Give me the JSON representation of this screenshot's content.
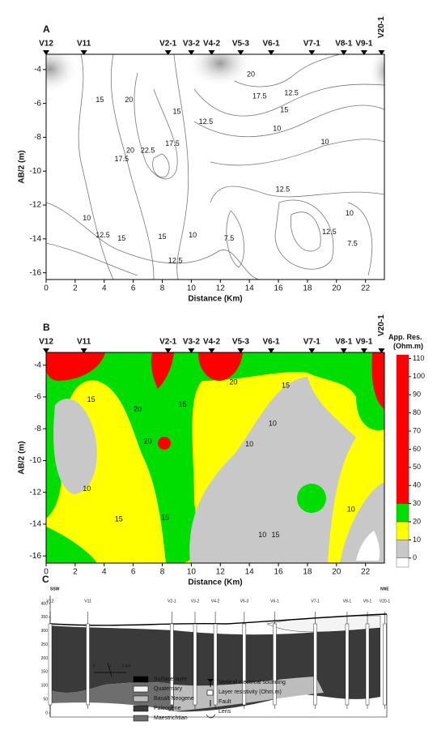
{
  "stations": [
    {
      "name": "V12",
      "x": 0
    },
    {
      "name": "V11",
      "x": 2.6
    },
    {
      "name": "V2-1",
      "x": 8.4
    },
    {
      "name": "V3-2",
      "x": 10.0
    },
    {
      "name": "V4-2",
      "x": 11.4
    },
    {
      "name": "V5-3",
      "x": 13.4
    },
    {
      "name": "V6-1",
      "x": 15.5
    },
    {
      "name": "V7-1",
      "x": 18.3
    },
    {
      "name": "V8-1",
      "x": 20.5
    },
    {
      "name": "V9-1",
      "x": 21.9
    },
    {
      "name": "V20-1",
      "x": 23.1
    }
  ],
  "panel_a": {
    "label": "A",
    "xlabel": "Distance (Km)",
    "ylabel": "AB/2 (m)",
    "xlim": [
      0,
      23.3
    ],
    "ylim": [
      -16.4,
      -3.1
    ],
    "xticks": [
      0,
      2,
      4,
      6,
      8,
      10,
      12,
      14,
      16,
      18,
      20,
      22
    ],
    "yticks": [
      -4,
      -6,
      -8,
      -10,
      -12,
      -14,
      -16
    ],
    "contour_labels": [
      {
        "value": 15,
        "x": 3.7,
        "y": -5.8
      },
      {
        "value": 20,
        "x": 5.7,
        "y": -5.8
      },
      {
        "value": 15,
        "x": 9.0,
        "y": -6.5
      },
      {
        "value": 12.5,
        "x": 11.0,
        "y": -7.1
      },
      {
        "value": 10,
        "x": 15.9,
        "y": -7.5
      },
      {
        "value": 20,
        "x": 14.1,
        "y": -4.3
      },
      {
        "value": 17.5,
        "x": 14.7,
        "y": -5.6
      },
      {
        "value": 15,
        "x": 16.4,
        "y": -6.4
      },
      {
        "value": 12.5,
        "x": 16.9,
        "y": -5.4
      },
      {
        "value": 17.5,
        "x": 5.2,
        "y": -9.3
      },
      {
        "value": 20,
        "x": 5.8,
        "y": -8.8
      },
      {
        "value": 22.5,
        "x": 7.0,
        "y": -8.8
      },
      {
        "value": 17.5,
        "x": 8.7,
        "y": -8.4
      },
      {
        "value": 10,
        "x": 19.2,
        "y": -8.3
      },
      {
        "value": 12.5,
        "x": 16.3,
        "y": -11.1
      },
      {
        "value": 10,
        "x": 2.8,
        "y": -12.8
      },
      {
        "value": 12.5,
        "x": 3.9,
        "y": -13.8
      },
      {
        "value": 15,
        "x": 5.2,
        "y": -14.0
      },
      {
        "value": 15,
        "x": 8.0,
        "y": -13.9
      },
      {
        "value": 12.5,
        "x": 8.9,
        "y": -15.3
      },
      {
        "value": 10,
        "x": 10.1,
        "y": -13.8
      },
      {
        "value": 7.5,
        "x": 12.6,
        "y": -14.0
      },
      {
        "value": 12.5,
        "x": 19.5,
        "y": -13.6
      },
      {
        "value": 10,
        "x": 20.9,
        "y": -12.5
      },
      {
        "value": 7.5,
        "x": 21.1,
        "y": -14.3
      }
    ]
  },
  "panel_b": {
    "label": "B",
    "xlabel": "Distance (Km)",
    "ylabel": "AB/2 (m)",
    "xlim": [
      0,
      23.3
    ],
    "ylim": [
      -16.45,
      -3.2
    ],
    "xticks": [
      0,
      2,
      4,
      6,
      8,
      10,
      12,
      14,
      16,
      18,
      20,
      22
    ],
    "yticks": [
      -4,
      -6,
      -8,
      -10,
      -12,
      -14,
      -16
    ],
    "contour_labels": [
      {
        "value": 15,
        "x": 3.1,
        "y": -6.2
      },
      {
        "value": 20,
        "x": 6.3,
        "y": -6.8
      },
      {
        "value": 20,
        "x": 7.0,
        "y": -8.8
      },
      {
        "value": 15,
        "x": 9.4,
        "y": -6.5
      },
      {
        "value": 20,
        "x": 12.9,
        "y": -5.1
      },
      {
        "value": 15,
        "x": 16.5,
        "y": -5.3
      },
      {
        "value": 10,
        "x": 15.6,
        "y": -7.7
      },
      {
        "value": 10,
        "x": 14.0,
        "y": -9.0
      },
      {
        "value": 10,
        "x": 2.8,
        "y": -11.8
      },
      {
        "value": 15,
        "x": 5.0,
        "y": -13.7
      },
      {
        "value": 15,
        "x": 8.2,
        "y": -13.6
      },
      {
        "value": 10,
        "x": 14.9,
        "y": -14.7
      },
      {
        "value": 15,
        "x": 15.8,
        "y": -14.7
      },
      {
        "value": 10,
        "x": 21.0,
        "y": -13.1
      }
    ],
    "colorbar": {
      "title": "App. Res. (Ohm.m)",
      "lim": [
        -5,
        112
      ],
      "ticks": [
        0,
        10,
        20,
        30,
        40,
        50,
        60,
        70,
        80,
        90,
        100,
        110
      ],
      "bands": [
        {
          "from": -5,
          "to": 0,
          "color": "#ffffff"
        },
        {
          "from": 0,
          "to": 10,
          "color": "#c8c8c8"
        },
        {
          "from": 10,
          "to": 20,
          "color": "#ffff00"
        },
        {
          "from": 20,
          "to": 30,
          "color": "#00dd00"
        },
        {
          "from": 30,
          "to": 112,
          "color": "#ff0000"
        }
      ]
    }
  },
  "panel_c": {
    "label": "C",
    "left": "SSW",
    "right": "NNE",
    "yticks": [
      400,
      350,
      300,
      250,
      200,
      150,
      100,
      50,
      0
    ],
    "scale": [
      "0",
      "1",
      "2 km"
    ],
    "legend_units": [
      {
        "name": "Surface layer",
        "color": "#000000"
      },
      {
        "name": "Quaternary",
        "color": "#f4f4f4"
      },
      {
        "name": "Basalt Neogene",
        "color": "#bdbdbd"
      },
      {
        "name": "Paleogene",
        "color": "#3a3a3a"
      },
      {
        "name": "Maestrichtian",
        "color": "#6e6e6e"
      }
    ],
    "legend_symbols": [
      "Vertical electrical sounding",
      "Layer resistivity (Ohm.m)",
      "Fault",
      "Lens"
    ]
  }
}
